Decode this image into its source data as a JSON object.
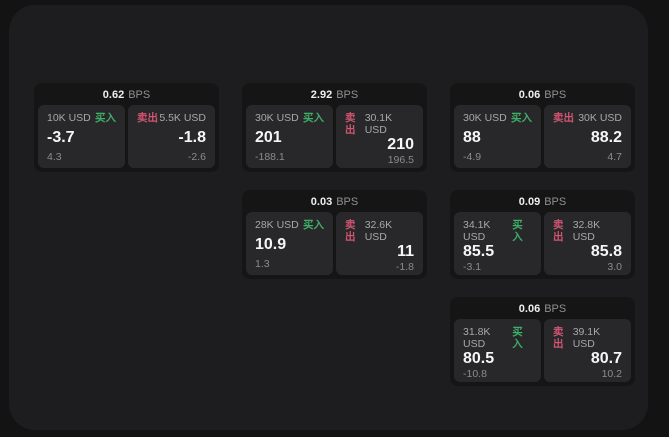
{
  "labels": {
    "buy": "买入",
    "sell": "卖出",
    "unit": "BPS"
  },
  "colors": {
    "buy_green": "#3fae68",
    "sell_rose": "#cf5571",
    "panel_bg": "#1d1d1f",
    "card_bg": "#151516",
    "subcard_bg": "#28282a"
  },
  "cards": [
    {
      "bps": "0.62",
      "row": 1,
      "col": 1,
      "buy": {
        "amount": "10K USD",
        "value": "-3.7",
        "change": "4.3"
      },
      "sell": {
        "amount": "5.5K USD",
        "value": "-1.8",
        "change": "-2.6"
      }
    },
    {
      "bps": "2.92",
      "row": 1,
      "col": 2,
      "buy": {
        "amount": "30K USD",
        "value": "201",
        "change": "-188.1"
      },
      "sell": {
        "amount": "30.1K USD",
        "value": "210",
        "change": "196.5"
      }
    },
    {
      "bps": "0.06",
      "row": 1,
      "col": 3,
      "buy": {
        "amount": "30K USD",
        "value": "88",
        "change": "-4.9"
      },
      "sell": {
        "amount": "30K USD",
        "value": "88.2",
        "change": "4.7"
      }
    },
    {
      "bps": "0.03",
      "row": 2,
      "col": 2,
      "buy": {
        "amount": "28K USD",
        "value": "10.9",
        "change": "1.3"
      },
      "sell": {
        "amount": "32.6K USD",
        "value": "11",
        "change": "-1.8"
      }
    },
    {
      "bps": "0.09",
      "row": 2,
      "col": 3,
      "buy": {
        "amount": "34.1K USD",
        "value": "85.5",
        "change": "-3.1"
      },
      "sell": {
        "amount": "32.8K USD",
        "value": "85.8",
        "change": "3.0"
      }
    },
    {
      "bps": "0.06",
      "row": 3,
      "col": 3,
      "buy": {
        "amount": "31.8K USD",
        "value": "80.5",
        "change": "-10.8"
      },
      "sell": {
        "amount": "39.1K USD",
        "value": "80.7",
        "change": "10.2"
      }
    }
  ]
}
